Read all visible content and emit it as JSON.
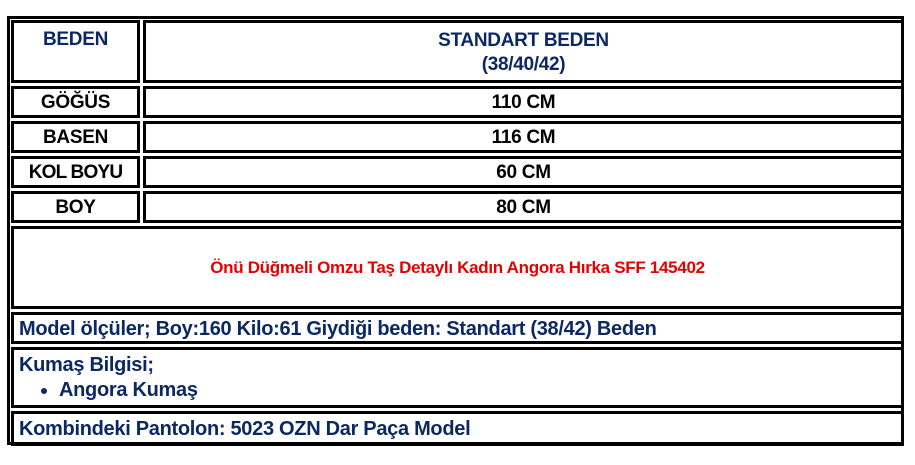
{
  "size_table": {
    "header": {
      "label": "BEDEN",
      "value_line1": "STANDART BEDEN",
      "value_line2": "(38/40/42)"
    },
    "rows": [
      {
        "label": "GÖĞÜS",
        "value": "110 CM"
      },
      {
        "label": "BASEN",
        "value": "116 CM"
      },
      {
        "label": "KOL BOYU",
        "value": "60 CM"
      },
      {
        "label": "BOY",
        "value": "80 CM"
      }
    ]
  },
  "product_title": "Önü Düğmeli Omzu Taş Detaylı Kadın Angora Hırka SFF 145402",
  "model_info": "Model ölçüler; Boy:160 Kilo:61 Giydiği beden: Standart (38/42) Beden",
  "fabric": {
    "title": "Kumaş Bilgisi;",
    "items": [
      "Angora Kumaş"
    ]
  },
  "combination": "Kombindeki Pantolon: 5023 OZN Dar Paça Model",
  "colors": {
    "navy": "#0b2863",
    "red": "#e60000",
    "border": "#000000"
  }
}
